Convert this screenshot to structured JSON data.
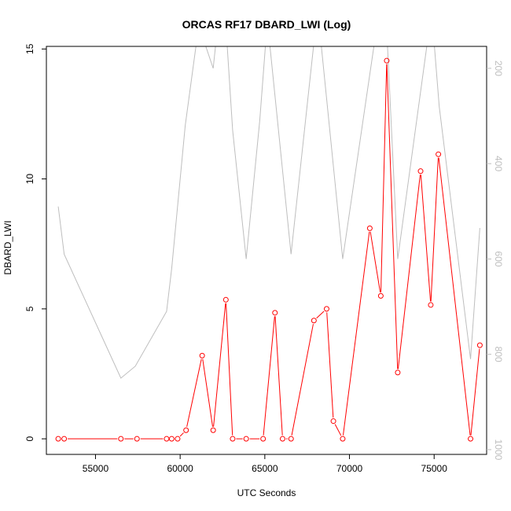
{
  "chart_data": {
    "type": "line",
    "title": "ORCAS RF17 DBARD_LWI (Log)",
    "xlabel": "UTC Seconds",
    "ylabel": "DBARD_LWI",
    "xlim": [
      52100,
      78100
    ],
    "ylim": [
      -0.6,
      15.1
    ],
    "x_ticks": [
      55000,
      60000,
      65000,
      70000,
      75000
    ],
    "y_ticks": [
      0,
      5,
      10,
      15
    ],
    "y2lim": [
      1010,
      154
    ],
    "y2_ticks": [
      200,
      400,
      600,
      800,
      1000
    ],
    "colors": {
      "primary": "#ff0000",
      "secondary": "#bebebe"
    },
    "series": [
      {
        "axis": "left",
        "style": "line-points",
        "x": [
          52800,
          53150,
          56500,
          57450,
          59200,
          59500,
          59850,
          60350,
          61300,
          61950,
          62700,
          63100,
          63900,
          64900,
          65600,
          66050,
          66550,
          67900,
          68650,
          69050,
          69600,
          71200,
          71850,
          72200,
          72850,
          74200,
          74800,
          75250,
          77150,
          77700
        ],
        "values": [
          0.0,
          0.0,
          0.0,
          0.0,
          0.0,
          0.0,
          0.0,
          0.33,
          3.2,
          0.33,
          5.35,
          0.0,
          0.0,
          0.0,
          4.85,
          0.0,
          0.0,
          4.55,
          5.0,
          0.68,
          0.0,
          8.1,
          5.5,
          14.55,
          2.55,
          10.3,
          5.15,
          10.95,
          0.0,
          3.6
        ]
      },
      {
        "axis": "right",
        "style": "line",
        "x": [
          52800,
          53150,
          56500,
          57350,
          59200,
          59500,
          60300,
          61100,
          61950,
          62100,
          62700,
          63100,
          63900,
          64700,
          65150,
          66550,
          67950,
          68300,
          69600,
          71500,
          71850,
          72200,
          72850,
          74850,
          75300,
          77150,
          77700
        ],
        "values": [
          490,
          590,
          850,
          825,
          710,
          620,
          320,
          110,
          200,
          150,
          110,
          330,
          600,
          310,
          100,
          590,
          130,
          140,
          600,
          140,
          110,
          120,
          600,
          80,
          280,
          810,
          535
        ]
      }
    ]
  }
}
